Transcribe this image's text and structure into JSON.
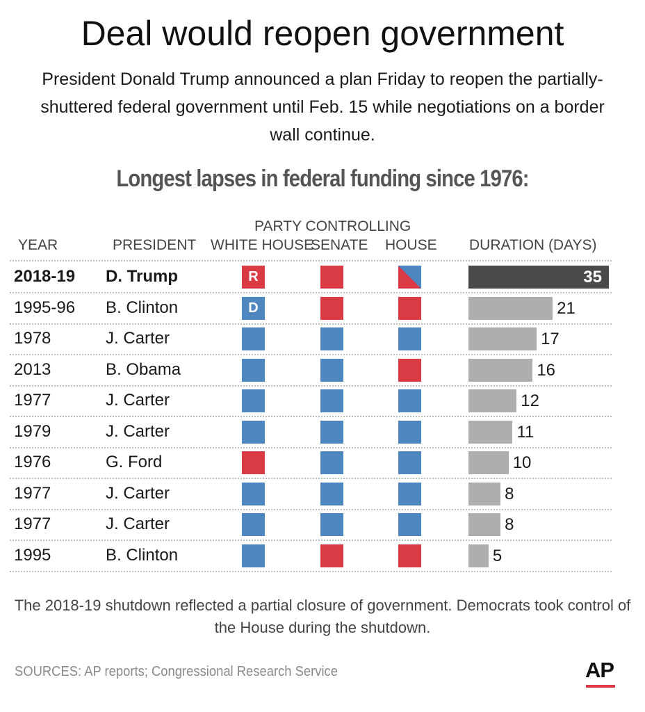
{
  "headline": "Deal would reopen government",
  "dek": "President Donald Trump announced a plan Friday to reopen the partially-shuttered federal government until Feb. 15 while negotiations on a border wall continue.",
  "colors": {
    "republican": "#d93a43",
    "democrat": "#4e86bf",
    "bar": "#aeaeae",
    "bar_highlight": "#4a4a4a"
  },
  "table": {
    "party_group_label": "PARTY CONTROLLING",
    "headers": {
      "year": "YEAR",
      "president": "PRESIDENT",
      "white_house": "WHITE HOUSE",
      "senate": "SENATE",
      "house": "HOUSE",
      "duration": "DURATION (DAYS)"
    }
  },
  "chart_data": {
    "type": "bar",
    "title": "Longest lapses in federal funding since 1976:",
    "categories": [
      "2018-19",
      "1995-96",
      "1978",
      "2013",
      "1977",
      "1979",
      "1976",
      "1977",
      "1977",
      "1995"
    ],
    "values": [
      35,
      21,
      17,
      16,
      12,
      11,
      10,
      8,
      8,
      5
    ],
    "xlabel": "DURATION (DAYS)",
    "xlim": [
      0,
      35
    ],
    "rows": [
      {
        "year": "2018-19",
        "president": "D. Trump",
        "white_house": "R",
        "senate": "R",
        "house": "R/D",
        "days": 35,
        "highlight": true,
        "wh_letter": "R"
      },
      {
        "year": "1995-96",
        "president": "B. Clinton",
        "white_house": "D",
        "senate": "R",
        "house": "R",
        "days": 21,
        "wh_letter": "D"
      },
      {
        "year": "1978",
        "president": "J. Carter",
        "white_house": "D",
        "senate": "D",
        "house": "D",
        "days": 17
      },
      {
        "year": "2013",
        "president": "B. Obama",
        "white_house": "D",
        "senate": "D",
        "house": "R",
        "days": 16
      },
      {
        "year": "1977",
        "president": "J. Carter",
        "white_house": "D",
        "senate": "D",
        "house": "D",
        "days": 12
      },
      {
        "year": "1979",
        "president": "J. Carter",
        "white_house": "D",
        "senate": "D",
        "house": "D",
        "days": 11
      },
      {
        "year": "1976",
        "president": "G. Ford",
        "white_house": "R",
        "senate": "D",
        "house": "D",
        "days": 10
      },
      {
        "year": "1977",
        "president": "J. Carter",
        "white_house": "D",
        "senate": "D",
        "house": "D",
        "days": 8
      },
      {
        "year": "1977",
        "president": "J. Carter",
        "white_house": "D",
        "senate": "D",
        "house": "D",
        "days": 8
      },
      {
        "year": "1995",
        "president": "B. Clinton",
        "white_house": "D",
        "senate": "R",
        "house": "R",
        "days": 5
      }
    ]
  },
  "note": "The 2018-19 shutdown reflected a partial closure of government. Democrats took control of the House during the shutdown.",
  "source": "SOURCES: AP reports; Congressional Research Service",
  "logo": "AP"
}
